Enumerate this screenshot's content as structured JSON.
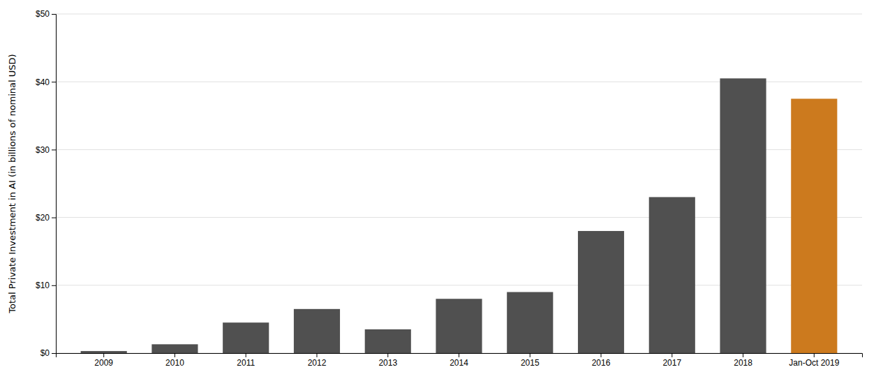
{
  "chart_data": {
    "type": "bar",
    "categories": [
      "2009",
      "2010",
      "2011",
      "2012",
      "2013",
      "2014",
      "2015",
      "2016",
      "2017",
      "2018",
      "Jan-Oct 2019"
    ],
    "values": [
      0.3,
      1.3,
      4.5,
      6.5,
      3.5,
      8.0,
      9.0,
      18.0,
      23.0,
      40.5,
      37.5
    ],
    "colors": [
      "#505050",
      "#505050",
      "#505050",
      "#505050",
      "#505050",
      "#505050",
      "#505050",
      "#505050",
      "#505050",
      "#505050",
      "#cc7a1e"
    ],
    "ylabel": "Total Private Investment in AI (in billions of nominal USD)",
    "ylim": [
      0,
      50
    ],
    "yticks": [
      {
        "value": 0,
        "label": "$0"
      },
      {
        "value": 10,
        "label": "$10"
      },
      {
        "value": 20,
        "label": "$20"
      },
      {
        "value": 30,
        "label": "$30"
      },
      {
        "value": 40,
        "label": "$40"
      },
      {
        "value": 50,
        "label": "$50"
      }
    ],
    "grid": true
  }
}
